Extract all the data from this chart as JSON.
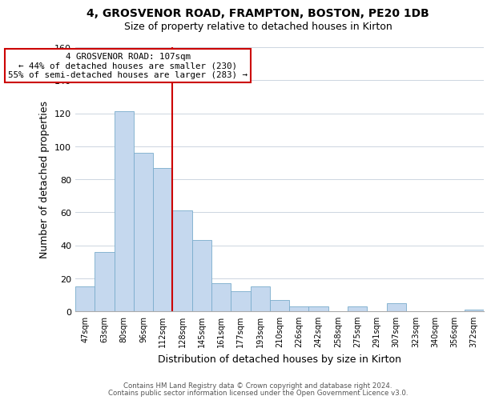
{
  "title1": "4, GROSVENOR ROAD, FRAMPTON, BOSTON, PE20 1DB",
  "title2": "Size of property relative to detached houses in Kirton",
  "xlabel": "Distribution of detached houses by size in Kirton",
  "ylabel": "Number of detached properties",
  "bin_labels": [
    "47sqm",
    "63sqm",
    "80sqm",
    "96sqm",
    "112sqm",
    "128sqm",
    "145sqm",
    "161sqm",
    "177sqm",
    "193sqm",
    "210sqm",
    "226sqm",
    "242sqm",
    "258sqm",
    "275sqm",
    "291sqm",
    "307sqm",
    "323sqm",
    "340sqm",
    "356sqm",
    "372sqm"
  ],
  "bar_heights": [
    15,
    36,
    121,
    96,
    87,
    61,
    43,
    17,
    12,
    15,
    7,
    3,
    3,
    0,
    3,
    0,
    5,
    0,
    0,
    0,
    1
  ],
  "bar_color": "#c5d8ee",
  "bar_edge_color": "#7aaccc",
  "vline_x_index": 4,
  "vline_color": "#cc0000",
  "annotation_title": "4 GROSVENOR ROAD: 107sqm",
  "annotation_line1": "← 44% of detached houses are smaller (230)",
  "annotation_line2": "55% of semi-detached houses are larger (283) →",
  "annotation_box_color": "#ffffff",
  "annotation_box_edge": "#cc0000",
  "ylim": [
    0,
    160
  ],
  "yticks": [
    0,
    20,
    40,
    60,
    80,
    100,
    120,
    140,
    160
  ],
  "footer1": "Contains HM Land Registry data © Crown copyright and database right 2024.",
  "footer2": "Contains public sector information licensed under the Open Government Licence v3.0."
}
